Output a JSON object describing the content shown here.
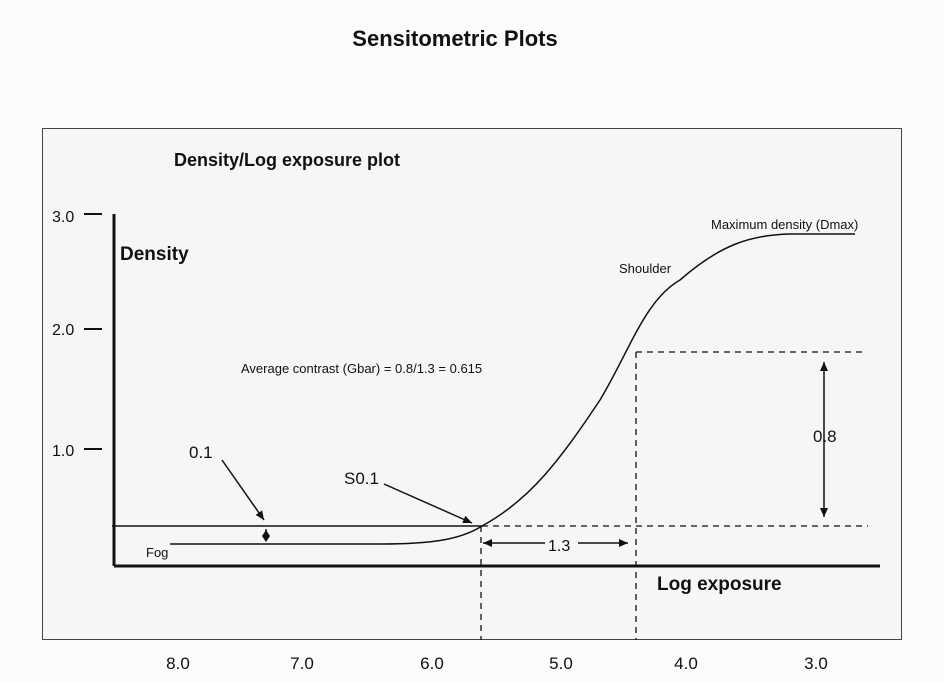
{
  "title": "Sensitometric Plots",
  "panel_title": "Density/Log exposure plot",
  "axes": {
    "y_label": "Density",
    "x_label": "Log exposure",
    "y_ticks": [
      "3.0",
      "2.0",
      "1.0"
    ],
    "x_ticks": [
      "8.0",
      "7.0",
      "6.0",
      "5.0",
      "4.0",
      "3.0"
    ]
  },
  "annotations": {
    "dmax": "Maximum density (Dmax)",
    "shoulder": "Shoulder",
    "avg_contrast": "Average contrast (Gbar) = 0.8/1.3 = 0.615",
    "fog_increment": "0.1",
    "s01": "S0.1",
    "density_delta": "0.8",
    "logE_delta": "1.3",
    "fog": "Fog"
  }
}
